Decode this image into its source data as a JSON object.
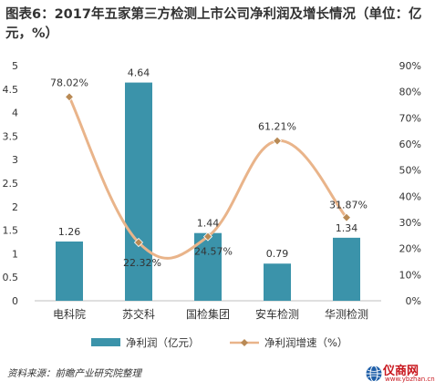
{
  "title": "图表6：2017年五家第三方检测上市公司净利润及增长情况（单位：亿元，%）",
  "source": "资料来源：前瞻产业研究院整理",
  "logo": {
    "text": "仪商网",
    "url": "www.ybzhan.cn"
  },
  "colors": {
    "bar": "#3b93aa",
    "line": "#e9b48a",
    "marker": "#b98a55",
    "axis": "#bfbfbf",
    "text": "#333333"
  },
  "chart_data": {
    "type": "bar",
    "categories": [
      "电科院",
      "苏交科",
      "国检集团",
      "安车检测",
      "华测检测"
    ],
    "series": [
      {
        "name": "净利润（亿元）",
        "type": "bar",
        "axis": "left",
        "values": [
          1.26,
          4.64,
          1.44,
          0.79,
          1.34
        ],
        "labels": [
          "1.26",
          "4.64",
          "1.44",
          "0.79",
          "1.34"
        ]
      },
      {
        "name": "净利润增速（%）",
        "type": "line",
        "axis": "right",
        "values": [
          78.02,
          22.32,
          24.57,
          61.21,
          31.87
        ],
        "labels": [
          "78.02%",
          "22.32%",
          "24.57%",
          "61.21%",
          "31.87%"
        ]
      }
    ],
    "ylim_left": [
      0,
      5
    ],
    "yticks_left": [
      "0",
      "0.5",
      "1",
      "1.5",
      "2",
      "2.5",
      "3",
      "3.5",
      "4",
      "4.5",
      "5"
    ],
    "ylim_right": [
      0,
      90
    ],
    "yticks_right": [
      "0%",
      "10%",
      "20%",
      "30%",
      "40%",
      "50%",
      "60%",
      "70%",
      "80%",
      "90%"
    ],
    "legend_position": "bottom",
    "grid": false
  }
}
